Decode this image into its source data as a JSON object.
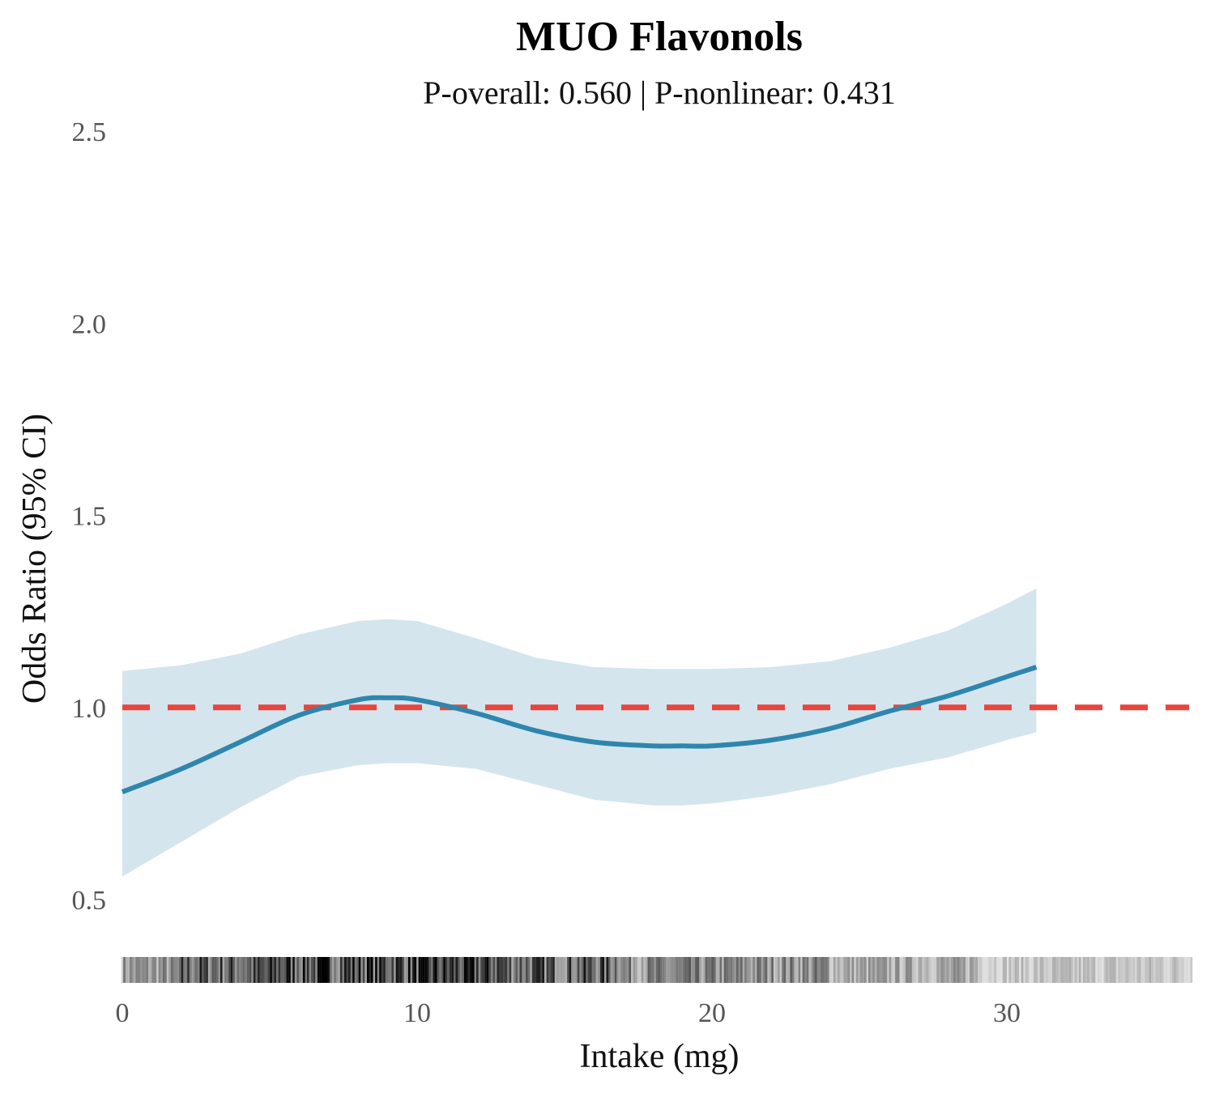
{
  "chart_data": {
    "type": "line",
    "title": "MUO Flavonols",
    "subtitle": "P-overall: 0.560 | P-nonlinear: 0.431",
    "xlabel": "Intake (mg)",
    "ylabel": "Odds Ratio (95% CI)",
    "xlim": [
      0,
      36.4
    ],
    "ylim": [
      0.38,
      2.5
    ],
    "x_ticks": [
      0,
      10,
      20,
      30
    ],
    "x_tick_labels": [
      "0",
      "10",
      "20",
      "30"
    ],
    "y_ticks": [
      0.5,
      1.0,
      1.5,
      2.0,
      2.5
    ],
    "y_tick_labels": [
      "0.5",
      "1.0",
      "1.5",
      "2.0",
      "2.5"
    ],
    "grid": false,
    "reference_line": {
      "y": 1.0,
      "style": "dashed",
      "color": "#e8453c"
    },
    "series": [
      {
        "color": "#2f86ad",
        "band_color": "#d5e5ee",
        "x": [
          0,
          2,
          4,
          6,
          8,
          9,
          10,
          12,
          14,
          16,
          18,
          19,
          20,
          22,
          24,
          26,
          28,
          30,
          31
        ],
        "y": [
          0.78,
          0.84,
          0.91,
          0.98,
          1.02,
          1.025,
          1.02,
          0.985,
          0.94,
          0.91,
          0.9,
          0.9,
          0.9,
          0.915,
          0.945,
          0.99,
          1.03,
          1.08,
          1.105
        ],
        "lower": [
          0.56,
          0.65,
          0.74,
          0.82,
          0.85,
          0.855,
          0.855,
          0.84,
          0.8,
          0.76,
          0.745,
          0.745,
          0.75,
          0.77,
          0.8,
          0.84,
          0.87,
          0.915,
          0.935
        ],
        "upper": [
          1.095,
          1.11,
          1.14,
          1.19,
          1.225,
          1.23,
          1.225,
          1.18,
          1.13,
          1.105,
          1.1,
          1.1,
          1.1,
          1.105,
          1.12,
          1.155,
          1.2,
          1.27,
          1.31
        ]
      }
    ],
    "rug": {
      "color": "#000000",
      "x_range": [
        0,
        36.3
      ],
      "density": [
        {
          "from": 0,
          "to": 2,
          "level": 0.55
        },
        {
          "from": 2,
          "to": 5,
          "level": 0.85
        },
        {
          "from": 5,
          "to": 13,
          "level": 1.0
        },
        {
          "from": 13,
          "to": 17,
          "level": 0.85
        },
        {
          "from": 17,
          "to": 24,
          "level": 0.6
        },
        {
          "from": 24,
          "to": 29,
          "level": 0.45
        },
        {
          "from": 29,
          "to": 36.3,
          "level": 0.3
        }
      ]
    }
  }
}
